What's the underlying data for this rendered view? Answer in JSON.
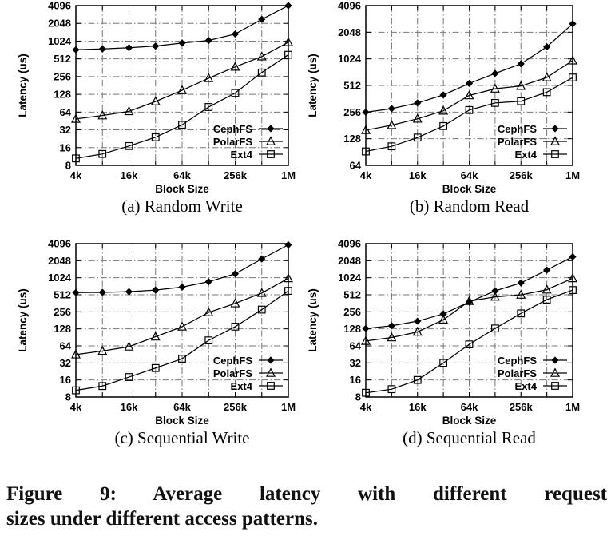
{
  "figure_caption": {
    "line1": "Figure 9: Average latency with different request",
    "line2": "sizes under different access patterns."
  },
  "colors": {
    "grid": "#777777",
    "axis": "#000000",
    "series_line": "#000000",
    "background": "#ffffff"
  },
  "chart_data": [
    {
      "id": "a",
      "type": "line",
      "title": "(a) Random Write",
      "xlabel": "Block Size",
      "ylabel": "Latency (us)",
      "x": [
        "4k",
        "8k",
        "16k",
        "32k",
        "64k",
        "128k",
        "256k",
        "512k",
        "1M"
      ],
      "x_tick_labels": [
        "4k",
        "16k",
        "64k",
        "256k",
        "1M"
      ],
      "x_scale": "log",
      "y_scale": "log",
      "ylim": [
        8,
        4096
      ],
      "y_ticks": [
        8,
        16,
        32,
        64,
        128,
        256,
        512,
        1024,
        2048,
        4096
      ],
      "grid": true,
      "legend_position": "inside-bottom-right",
      "series": [
        {
          "name": "CephFS",
          "marker": "filled-diamond",
          "color": "#000000",
          "values": [
            730,
            755,
            790,
            845,
            950,
            1050,
            1350,
            2400,
            4096
          ]
        },
        {
          "name": "PolarFS",
          "marker": "open-triangle",
          "color": "#000000",
          "values": [
            49,
            56,
            66,
            97,
            150,
            240,
            375,
            560,
            980
          ]
        },
        {
          "name": "Ext4",
          "marker": "open-square",
          "color": "#000000",
          "values": [
            10.5,
            12.5,
            17,
            24,
            39,
            78,
            135,
            300,
            600
          ]
        }
      ]
    },
    {
      "id": "b",
      "type": "line",
      "title": "(b) Random Read",
      "xlabel": "Block Size",
      "ylabel": "Latency (us)",
      "x": [
        "4k",
        "8k",
        "16k",
        "32k",
        "64k",
        "128k",
        "256k",
        "512k",
        "1M"
      ],
      "x_tick_labels": [
        "4k",
        "16k",
        "64k",
        "256k",
        "1M"
      ],
      "x_scale": "log",
      "y_scale": "log",
      "ylim": [
        64,
        4096
      ],
      "y_ticks": [
        64,
        128,
        256,
        512,
        1024,
        2048,
        4096
      ],
      "grid": true,
      "legend_position": "inside-bottom-right",
      "series": [
        {
          "name": "CephFS",
          "marker": "filled-diamond",
          "color": "#000000",
          "values": [
            255,
            280,
            325,
            400,
            540,
            700,
            900,
            1400,
            2550
          ]
        },
        {
          "name": "PolarFS",
          "marker": "open-triangle",
          "color": "#000000",
          "values": [
            160,
            182,
            215,
            265,
            395,
            470,
            505,
            630,
            980
          ]
        },
        {
          "name": "Ext4",
          "marker": "open-square",
          "color": "#000000",
          "values": [
            92,
            105,
            132,
            178,
            270,
            325,
            340,
            430,
            630
          ]
        }
      ]
    },
    {
      "id": "c",
      "type": "line",
      "title": "(c) Sequential Write",
      "xlabel": "Block Size",
      "ylabel": "Latency (us)",
      "x": [
        "4k",
        "8k",
        "16k",
        "32k",
        "64k",
        "128k",
        "256k",
        "512k",
        "1M"
      ],
      "x_tick_labels": [
        "4k",
        "16k",
        "64k",
        "256k",
        "1M"
      ],
      "x_scale": "log",
      "y_scale": "log",
      "ylim": [
        8,
        4096
      ],
      "y_ticks": [
        8,
        16,
        32,
        64,
        128,
        256,
        512,
        1024,
        2048,
        4096
      ],
      "grid": true,
      "legend_position": "inside-bottom-right",
      "series": [
        {
          "name": "CephFS",
          "marker": "filled-diamond",
          "color": "#000000",
          "values": [
            560,
            565,
            580,
            620,
            700,
            870,
            1200,
            2200,
            3900
          ]
        },
        {
          "name": "PolarFS",
          "marker": "open-triangle",
          "color": "#000000",
          "values": [
            45,
            52,
            62,
            93,
            140,
            250,
            360,
            550,
            1000
          ]
        },
        {
          "name": "Ext4",
          "marker": "open-square",
          "color": "#000000",
          "values": [
            10.5,
            12.5,
            18,
            26,
            38,
            80,
            140,
            280,
            600
          ]
        }
      ]
    },
    {
      "id": "d",
      "type": "line",
      "title": "(d) Sequential Read",
      "xlabel": "Block Size",
      "ylabel": "Latency (us)",
      "x": [
        "4k",
        "8k",
        "16k",
        "32k",
        "64k",
        "128k",
        "256k",
        "512k",
        "1M"
      ],
      "x_tick_labels": [
        "4k",
        "16k",
        "64k",
        "256k",
        "1M"
      ],
      "x_scale": "log",
      "y_scale": "log",
      "ylim": [
        8,
        4096
      ],
      "y_ticks": [
        8,
        16,
        32,
        64,
        128,
        256,
        512,
        1024,
        2048,
        4096
      ],
      "grid": true,
      "legend_position": "inside-bottom-right",
      "series": [
        {
          "name": "CephFS",
          "marker": "filled-diamond",
          "color": "#000000",
          "values": [
            130,
            145,
            175,
            235,
            380,
            600,
            830,
            1400,
            2400
          ]
        },
        {
          "name": "PolarFS",
          "marker": "open-triangle",
          "color": "#000000",
          "values": [
            78,
            90,
            113,
            185,
            395,
            470,
            510,
            630,
            1000
          ]
        },
        {
          "name": "Ext4",
          "marker": "open-square",
          "color": "#000000",
          "values": [
            9.5,
            11,
            16,
            32,
            68,
            130,
            240,
            420,
            620
          ]
        }
      ]
    }
  ]
}
